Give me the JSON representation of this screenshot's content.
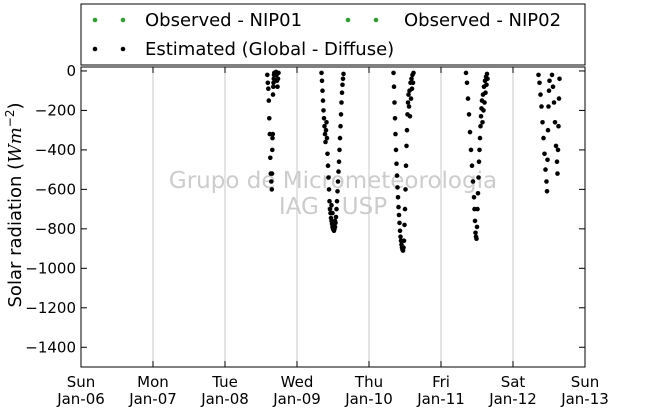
{
  "chart_data": {
    "type": "scatter",
    "ylabel": "Solar radiation ($Wm^{-2}$)",
    "ylabel_parts": {
      "prefix": "Solar radiation (",
      "unit": "Wm",
      "exp": "−2",
      "suffix": ")"
    },
    "ylim": [
      -1500,
      20
    ],
    "yticks": [
      0,
      -200,
      -400,
      -600,
      -800,
      -1000,
      -1200,
      -1400
    ],
    "ytick_labels": [
      "0",
      "−200",
      "−400",
      "−600",
      "−800",
      "−1000",
      "−1200",
      "−1400"
    ],
    "xlim": [
      "2013-01-06",
      "2013-01-13"
    ],
    "xticks": [
      {
        "day": "Sun",
        "date": "Jan-06"
      },
      {
        "day": "Mon",
        "date": "Jan-07"
      },
      {
        "day": "Tue",
        "date": "Jan-08"
      },
      {
        "day": "Wed",
        "date": "Jan-09"
      },
      {
        "day": "Thu",
        "date": "Jan-10"
      },
      {
        "day": "Fri",
        "date": "Jan-11"
      },
      {
        "day": "Sat",
        "date": "Jan-12"
      },
      {
        "day": "Sun",
        "date": "Jan-13"
      }
    ],
    "grid": "vertical",
    "legend_placement": "top",
    "watermark": [
      "Grupo de Micrometeorologia",
      "IAG - USP"
    ],
    "series": [
      {
        "name": "Observed - NIP01",
        "color": "#2ca02c",
        "points": []
      },
      {
        "name": "Observed - NIP02",
        "color": "#2ca02c",
        "points": []
      },
      {
        "name": "Estimated (Global - Diffuse)",
        "color": "#000000",
        "points": [
          [
            "2013-01-08 14:05",
            -20
          ],
          [
            "2013-01-08 14:15",
            -60
          ],
          [
            "2013-01-08 14:25",
            -90
          ],
          [
            "2013-01-08 14:35",
            -150
          ],
          [
            "2013-01-08 14:45",
            -240
          ],
          [
            "2013-01-08 14:55",
            -320
          ],
          [
            "2013-01-08 15:05",
            -440
          ],
          [
            "2013-01-08 15:15",
            -520
          ],
          [
            "2013-01-08 15:25",
            -560
          ],
          [
            "2013-01-08 15:35",
            -600
          ],
          [
            "2013-01-08 15:40",
            -520
          ],
          [
            "2013-01-08 15:45",
            -400
          ],
          [
            "2013-01-08 15:50",
            -340
          ],
          [
            "2013-01-08 15:55",
            -320
          ],
          [
            "2013-01-08 16:00",
            -120
          ],
          [
            "2013-01-08 16:05",
            -80
          ],
          [
            "2013-01-08 16:10",
            -60
          ],
          [
            "2013-01-08 16:15",
            -40
          ],
          [
            "2013-01-08 16:20",
            -20
          ],
          [
            "2013-01-08 16:25",
            -10
          ],
          [
            "2013-01-08 17:00",
            -5
          ],
          [
            "2013-01-08 17:10",
            -20
          ],
          [
            "2013-01-08 17:20",
            -50
          ],
          [
            "2013-01-08 17:30",
            -80
          ],
          [
            "2013-01-08 17:40",
            -40
          ],
          [
            "2013-01-08 17:50",
            -10
          ],
          [
            "2013-01-09 08:10",
            -10
          ],
          [
            "2013-01-09 08:20",
            -50
          ],
          [
            "2013-01-09 08:30",
            -100
          ],
          [
            "2013-01-09 08:40",
            -150
          ],
          [
            "2013-01-09 08:50",
            -200
          ],
          [
            "2013-01-09 09:00",
            -240
          ],
          [
            "2013-01-09 09:10",
            -280
          ],
          [
            "2013-01-09 09:20",
            -320
          ],
          [
            "2013-01-09 09:30",
            -360
          ],
          [
            "2013-01-09 09:40",
            -300
          ],
          [
            "2013-01-09 09:50",
            -260
          ],
          [
            "2013-01-09 10:00",
            -340
          ],
          [
            "2013-01-09 10:10",
            -420
          ],
          [
            "2013-01-09 10:20",
            -480
          ],
          [
            "2013-01-09 10:30",
            -540
          ],
          [
            "2013-01-09 10:40",
            -600
          ],
          [
            "2013-01-09 10:50",
            -660
          ],
          [
            "2013-01-09 11:00",
            -700
          ],
          [
            "2013-01-09 11:10",
            -720
          ],
          [
            "2013-01-09 11:20",
            -745
          ],
          [
            "2013-01-09 11:30",
            -760
          ],
          [
            "2013-01-09 11:40",
            -775
          ],
          [
            "2013-01-09 11:50",
            -790
          ],
          [
            "2013-01-09 12:00",
            -800
          ],
          [
            "2013-01-09 12:10",
            -805
          ],
          [
            "2013-01-09 12:20",
            -810
          ],
          [
            "2013-01-09 12:30",
            -800
          ],
          [
            "2013-01-09 12:40",
            -790
          ],
          [
            "2013-01-09 12:50",
            -770
          ],
          [
            "2013-01-09 13:00",
            -740
          ],
          [
            "2013-01-09 13:10",
            -700
          ],
          [
            "2013-01-09 13:20",
            -660
          ],
          [
            "2013-01-09 13:30",
            -610
          ],
          [
            "2013-01-09 13:40",
            -560
          ],
          [
            "2013-01-09 13:50",
            -510
          ],
          [
            "2013-01-09 14:00",
            -460
          ],
          [
            "2013-01-09 14:10",
            -400
          ],
          [
            "2013-01-09 14:20",
            -340
          ],
          [
            "2013-01-09 14:30",
            -280
          ],
          [
            "2013-01-09 14:40",
            -220
          ],
          [
            "2013-01-09 14:50",
            -160
          ],
          [
            "2013-01-09 15:00",
            -110
          ],
          [
            "2013-01-09 15:10",
            -70
          ],
          [
            "2013-01-09 15:20",
            -40
          ],
          [
            "2013-01-09 15:30",
            -15
          ],
          [
            "2013-01-09 11:30",
            -680
          ],
          [
            "2013-01-09 11:50",
            -720
          ],
          [
            "2013-01-09 12:40",
            -760
          ],
          [
            "2013-01-10 08:10",
            -10
          ],
          [
            "2013-01-10 08:20",
            -80
          ],
          [
            "2013-01-10 08:30",
            -160
          ],
          [
            "2013-01-10 08:40",
            -240
          ],
          [
            "2013-01-10 08:50",
            -320
          ],
          [
            "2013-01-10 09:00",
            -400
          ],
          [
            "2013-01-10 09:10",
            -470
          ],
          [
            "2013-01-10 09:20",
            -530
          ],
          [
            "2013-01-10 09:30",
            -590
          ],
          [
            "2013-01-10 09:40",
            -640
          ],
          [
            "2013-01-10 09:50",
            -690
          ],
          [
            "2013-01-10 10:00",
            -730
          ],
          [
            "2013-01-10 10:10",
            -770
          ],
          [
            "2013-01-10 10:20",
            -810
          ],
          [
            "2013-01-10 10:30",
            -840
          ],
          [
            "2013-01-10 10:40",
            -860
          ],
          [
            "2013-01-10 10:50",
            -880
          ],
          [
            "2013-01-10 11:00",
            -895
          ],
          [
            "2013-01-10 11:10",
            -905
          ],
          [
            "2013-01-10 11:20",
            -910
          ],
          [
            "2013-01-10 11:30",
            -895
          ],
          [
            "2013-01-10 11:40",
            -860
          ],
          [
            "2013-01-10 11:50",
            -780
          ],
          [
            "2013-01-10 12:00",
            -700
          ],
          [
            "2013-01-10 12:10",
            -600
          ],
          [
            "2013-01-10 12:20",
            -480
          ],
          [
            "2013-01-10 12:30",
            -380
          ],
          [
            "2013-01-10 12:40",
            -300
          ],
          [
            "2013-01-10 12:50",
            -220
          ],
          [
            "2013-01-10 13:00",
            -160
          ],
          [
            "2013-01-10 13:10",
            -120
          ],
          [
            "2013-01-10 13:20",
            -180
          ],
          [
            "2013-01-10 13:30",
            -100
          ],
          [
            "2013-01-10 13:40",
            -230
          ],
          [
            "2013-01-10 13:50",
            -60
          ],
          [
            "2013-01-10 14:00",
            -140
          ],
          [
            "2013-01-10 14:10",
            -40
          ],
          [
            "2013-01-10 14:20",
            -90
          ],
          [
            "2013-01-10 14:30",
            -20
          ],
          [
            "2013-01-10 14:40",
            -60
          ],
          [
            "2013-01-10 14:50",
            -10
          ],
          [
            "2013-01-11 08:20",
            -10
          ],
          [
            "2013-01-11 08:40",
            -60
          ],
          [
            "2013-01-11 09:00",
            -140
          ],
          [
            "2013-01-11 09:20",
            -220
          ],
          [
            "2013-01-11 09:40",
            -310
          ],
          [
            "2013-01-11 10:00",
            -400
          ],
          [
            "2013-01-11 10:20",
            -480
          ],
          [
            "2013-01-11 10:40",
            -560
          ],
          [
            "2013-01-11 11:00",
            -640
          ],
          [
            "2013-01-11 11:10",
            -700
          ],
          [
            "2013-01-11 11:20",
            -760
          ],
          [
            "2013-01-11 11:30",
            -820
          ],
          [
            "2013-01-11 11:40",
            -840
          ],
          [
            "2013-01-11 11:50",
            -850
          ],
          [
            "2013-01-11 12:00",
            -790
          ],
          [
            "2013-01-11 12:10",
            -700
          ],
          [
            "2013-01-11 12:20",
            -620
          ],
          [
            "2013-01-11 12:30",
            -540
          ],
          [
            "2013-01-11 12:40",
            -460
          ],
          [
            "2013-01-11 12:50",
            -400
          ],
          [
            "2013-01-11 13:00",
            -340
          ],
          [
            "2013-01-11 13:10",
            -280
          ],
          [
            "2013-01-11 13:20",
            -230
          ],
          [
            "2013-01-11 13:30",
            -190
          ],
          [
            "2013-01-11 13:40",
            -150
          ],
          [
            "2013-01-11 13:50",
            -260
          ],
          [
            "2013-01-11 14:00",
            -120
          ],
          [
            "2013-01-11 14:10",
            -200
          ],
          [
            "2013-01-11 14:20",
            -80
          ],
          [
            "2013-01-11 14:30",
            -160
          ],
          [
            "2013-01-11 14:40",
            -50
          ],
          [
            "2013-01-11 14:50",
            -110
          ],
          [
            "2013-01-11 15:00",
            -30
          ],
          [
            "2013-01-11 15:10",
            -70
          ],
          [
            "2013-01-11 15:20",
            -15
          ],
          [
            "2013-01-11 15:30",
            -40
          ],
          [
            "2013-01-12 08:30",
            -20
          ],
          [
            "2013-01-12 08:50",
            -60
          ],
          [
            "2013-01-12 09:10",
            -120
          ],
          [
            "2013-01-12 09:30",
            -180
          ],
          [
            "2013-01-12 09:50",
            -260
          ],
          [
            "2013-01-12 10:10",
            -340
          ],
          [
            "2013-01-12 10:30",
            -420
          ],
          [
            "2013-01-12 10:50",
            -500
          ],
          [
            "2013-01-12 11:10",
            -560
          ],
          [
            "2013-01-12 11:20",
            -610
          ],
          [
            "2013-01-12 11:30",
            -450
          ],
          [
            "2013-01-12 11:40",
            -300
          ],
          [
            "2013-01-12 11:50",
            -180
          ],
          [
            "2013-01-12 12:00",
            -100
          ],
          [
            "2013-01-12 12:10",
            -50
          ],
          [
            "2013-01-12 13:00",
            -20
          ],
          [
            "2013-01-12 13:20",
            -80
          ],
          [
            "2013-01-12 13:40",
            -160
          ],
          [
            "2013-01-12 14:00",
            -260
          ],
          [
            "2013-01-12 14:20",
            -380
          ],
          [
            "2013-01-12 14:40",
            -460
          ],
          [
            "2013-01-12 14:50",
            -520
          ],
          [
            "2013-01-12 15:00",
            -400
          ],
          [
            "2013-01-12 15:10",
            -280
          ],
          [
            "2013-01-12 15:20",
            -140
          ],
          [
            "2013-01-12 15:30",
            -40
          ]
        ]
      }
    ]
  }
}
